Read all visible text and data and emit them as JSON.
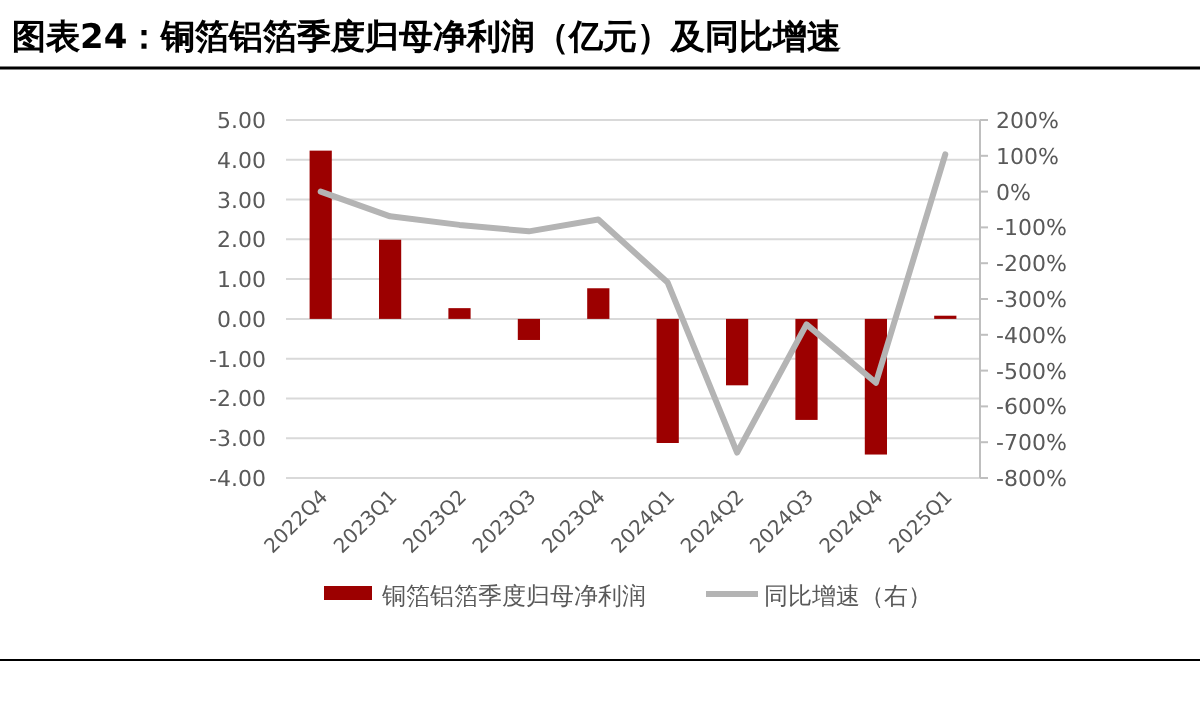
{
  "chart_data": {
    "type": "bar",
    "title": "图表24：铜箔铝箔季度归母净利润（亿元）及同比增速",
    "categories": [
      "2022Q4",
      "2023Q1",
      "2023Q2",
      "2023Q3",
      "2023Q4",
      "2024Q1",
      "2024Q2",
      "2024Q3",
      "2024Q4",
      "2025Q1"
    ],
    "series": [
      {
        "name": "铜箔铝箔季度归母净利润",
        "color": "#9c0000",
        "values": [
          4.23,
          1.99,
          0.27,
          -0.53,
          0.77,
          -3.12,
          -1.67,
          -2.54,
          -3.41,
          0.08
        ]
      },
      {
        "name": "同比增速（右）",
        "type": "line",
        "axis": "y2",
        "color": "#b4b4b4",
        "values": [
          0,
          -69,
          -93,
          -111,
          -78,
          -254,
          -729,
          -371,
          -534,
          104
        ]
      }
    ],
    "ylim": [
      -4,
      5
    ],
    "yticks": [
      {
        "value": -4,
        "label": "-4.00"
      },
      {
        "value": -3,
        "label": "-3.00"
      },
      {
        "value": -2,
        "label": "-2.00"
      },
      {
        "value": -1,
        "label": "-1.00"
      },
      {
        "value": 0,
        "label": "0.00"
      },
      {
        "value": 1,
        "label": "1.00"
      },
      {
        "value": 2,
        "label": "2.00"
      },
      {
        "value": 3,
        "label": "3.00"
      },
      {
        "value": 4,
        "label": "4.00"
      },
      {
        "value": 5,
        "label": "5.00"
      }
    ],
    "y2lim": [
      -800,
      200
    ],
    "y2ticks": [
      {
        "value": -800,
        "label": "-800%"
      },
      {
        "value": -700,
        "label": "-700%"
      },
      {
        "value": -600,
        "label": "-600%"
      },
      {
        "value": -500,
        "label": "-500%"
      },
      {
        "value": -400,
        "label": "-400%"
      },
      {
        "value": -300,
        "label": "-300%"
      },
      {
        "value": -200,
        "label": "-200%"
      },
      {
        "value": -100,
        "label": "-100%"
      },
      {
        "value": 0,
        "label": "0%"
      },
      {
        "value": 100,
        "label": "100%"
      },
      {
        "value": 200,
        "label": "200%"
      }
    ],
    "grid": "y",
    "legend": "bottom",
    "marker": "none",
    "line_style": "solid"
  }
}
